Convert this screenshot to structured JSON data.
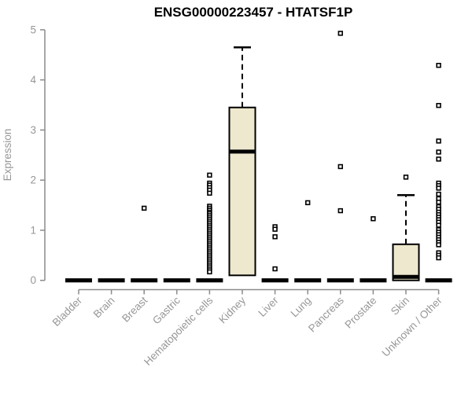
{
  "chart_data": {
    "type": "boxplot",
    "title": "ENSG00000223457 - HTATSF1P",
    "ylabel": "Expression",
    "xlabel": "",
    "ylim": [
      0,
      5
    ],
    "yticks": [
      0,
      1,
      2,
      3,
      4,
      5
    ],
    "grid": false,
    "legend": null,
    "colors": {
      "box_fill": "#EDE8CE",
      "box_border": "#000000",
      "axis": "#8B8B8B",
      "labels": "#979797",
      "title": "#000000",
      "background": "#FFFFFF"
    },
    "categories": [
      "Bladder",
      "Brain",
      "Breast",
      "Gastric",
      "Hematopoietic cells",
      "Kidney",
      "Liver",
      "Lung",
      "Pancreas",
      "Prostate",
      "Skin",
      "Unknown / Other"
    ],
    "boxes": [
      {
        "category": "Bladder",
        "q1": 0,
        "median": 0,
        "q3": 0,
        "whisker_low": 0,
        "whisker_high": 0,
        "outliers": []
      },
      {
        "category": "Brain",
        "q1": 0,
        "median": 0,
        "q3": 0,
        "whisker_low": 0,
        "whisker_high": 0,
        "outliers": []
      },
      {
        "category": "Breast",
        "q1": 0,
        "median": 0,
        "q3": 0,
        "whisker_low": 0,
        "whisker_high": 0,
        "outliers": [
          1.44
        ]
      },
      {
        "category": "Gastric",
        "q1": 0,
        "median": 0,
        "q3": 0,
        "whisker_low": 0,
        "whisker_high": 0,
        "outliers": []
      },
      {
        "category": "Hematopoietic cells",
        "q1": 0,
        "median": 0,
        "q3": 0,
        "whisker_low": 0,
        "whisker_high": 0,
        "outliers": [
          2.1,
          1.94,
          1.9,
          1.85,
          1.8,
          1.74,
          1.48,
          1.44,
          1.4,
          1.36,
          1.33,
          1.29,
          1.25,
          1.21,
          1.17,
          1.13,
          1.09,
          1.05,
          1.01,
          0.97,
          0.93,
          0.89,
          0.85,
          0.81,
          0.77,
          0.73,
          0.69,
          0.65,
          0.61,
          0.57,
          0.53,
          0.49,
          0.45,
          0.41,
          0.37,
          0.33,
          0.29,
          0.25,
          0.21,
          0.17
        ]
      },
      {
        "category": "Kidney",
        "q1": 0.1,
        "median": 2.57,
        "q3": 3.45,
        "whisker_low": 0.1,
        "whisker_high": 4.65,
        "outliers": []
      },
      {
        "category": "Liver",
        "q1": 0,
        "median": 0,
        "q3": 0,
        "whisker_low": 0,
        "whisker_high": 0,
        "outliers": [
          1.07,
          1.02,
          0.87,
          0.23
        ]
      },
      {
        "category": "Lung",
        "q1": 0,
        "median": 0,
        "q3": 0,
        "whisker_low": 0,
        "whisker_high": 0,
        "outliers": [
          1.55
        ]
      },
      {
        "category": "Pancreas",
        "q1": 0,
        "median": 0,
        "q3": 0,
        "whisker_low": 0,
        "whisker_high": 0,
        "outliers": [
          4.93,
          2.27,
          1.39
        ]
      },
      {
        "category": "Prostate",
        "q1": 0,
        "median": 0,
        "q3": 0,
        "whisker_low": 0,
        "whisker_high": 0,
        "outliers": [
          1.23
        ]
      },
      {
        "category": "Skin",
        "q1": 0,
        "median": 0.07,
        "q3": 0.72,
        "whisker_low": 0,
        "whisker_high": 1.7,
        "outliers": [
          2.06
        ]
      },
      {
        "category": "Unknown / Other",
        "q1": 0,
        "median": 0,
        "q3": 0,
        "whisker_low": 0,
        "whisker_high": 0,
        "outliers": [
          4.29,
          3.49,
          2.78,
          2.56,
          2.42,
          1.94,
          1.89,
          1.84,
          1.72,
          1.63,
          1.56,
          1.47,
          1.42,
          1.36,
          1.31,
          1.26,
          1.21,
          1.16,
          1.1,
          1.01,
          0.96,
          0.91,
          0.86,
          0.81,
          0.76,
          0.71,
          0.55,
          0.5,
          0.45
        ]
      }
    ]
  }
}
